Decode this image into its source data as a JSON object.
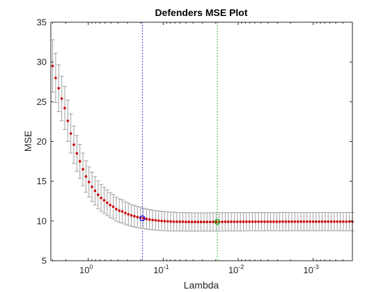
{
  "chart_data": {
    "type": "scatter",
    "title": "Defenders MSE Plot",
    "xlabel": "Lambda",
    "ylabel": "MSE",
    "xscale": "log",
    "xaxis_direction": "reversed",
    "xlim": [
      3.16,
      0.0003
    ],
    "ylim": [
      5,
      35
    ],
    "x_ticks": [
      {
        "value": 1,
        "base": "10",
        "exp": "0"
      },
      {
        "value": 0.1,
        "base": "10",
        "exp": "-1"
      },
      {
        "value": 0.01,
        "base": "10",
        "exp": "-2"
      },
      {
        "value": 0.001,
        "base": "10",
        "exp": "-3"
      }
    ],
    "y_ticks": [
      5,
      10,
      15,
      20,
      25,
      30,
      35
    ],
    "grid": false,
    "lambda_max": 2.99,
    "lambda_min": 0.0003,
    "num_points": 100,
    "series": [
      {
        "style": "red dots with gray error bars",
        "mse": [
          29.5,
          28.0,
          26.7,
          25.4,
          24.2,
          22.6,
          21.0,
          19.6,
          18.5,
          17.5,
          16.5,
          15.6,
          14.9,
          14.3,
          13.8,
          13.3,
          12.9,
          12.6,
          12.3,
          12.0,
          11.8,
          11.5,
          11.3,
          11.2,
          11.0,
          10.85,
          10.7,
          10.6,
          10.5,
          10.42,
          10.33,
          10.25,
          10.18,
          10.12,
          10.08,
          10.04,
          10.0,
          9.97,
          9.95,
          9.93,
          9.92,
          9.91,
          9.9,
          9.9,
          9.89,
          9.89,
          9.88,
          9.88,
          9.88,
          9.88,
          9.88,
          9.88,
          9.88,
          9.89,
          9.89,
          9.89,
          9.89,
          9.9,
          9.9,
          9.9,
          9.9,
          9.9,
          9.9,
          9.9,
          9.91,
          9.91,
          9.91,
          9.91,
          9.91,
          9.91,
          9.91,
          9.91,
          9.91,
          9.91,
          9.91,
          9.91,
          9.92,
          9.92,
          9.92,
          9.92,
          9.92,
          9.92,
          9.92,
          9.92,
          9.92,
          9.92,
          9.92,
          9.92,
          9.92,
          9.92,
          9.92,
          9.92,
          9.92,
          9.92,
          9.92,
          9.92,
          9.92,
          9.92,
          9.92,
          9.92
        ],
        "err": [
          3.3,
          3.1,
          2.95,
          2.8,
          2.7,
          2.6,
          2.45,
          2.35,
          2.25,
          2.15,
          2.05,
          1.97,
          1.9,
          1.85,
          1.8,
          1.75,
          1.7,
          1.66,
          1.62,
          1.58,
          1.55,
          1.52,
          1.49,
          1.46,
          1.43,
          1.4,
          1.37,
          1.35,
          1.33,
          1.31,
          1.29,
          1.27,
          1.25,
          1.24,
          1.23,
          1.22,
          1.21,
          1.2,
          1.19,
          1.18,
          1.18,
          1.17,
          1.17,
          1.16,
          1.16,
          1.16,
          1.15,
          1.15,
          1.15,
          1.15,
          1.15,
          1.15,
          1.15,
          1.15,
          1.15,
          1.15,
          1.15,
          1.15,
          1.15,
          1.15,
          1.15,
          1.15,
          1.15,
          1.15,
          1.15,
          1.15,
          1.15,
          1.15,
          1.15,
          1.15,
          1.15,
          1.15,
          1.15,
          1.15,
          1.15,
          1.15,
          1.15,
          1.15,
          1.15,
          1.15,
          1.15,
          1.15,
          1.15,
          1.15,
          1.15,
          1.15,
          1.15,
          1.15,
          1.15,
          1.15,
          1.15,
          1.15,
          1.15,
          1.15,
          1.15,
          1.15,
          1.15,
          1.15,
          1.15,
          1.15
        ]
      }
    ],
    "reference_lines": [
      {
        "x": 0.19,
        "style": "dotted",
        "color": "#0000ff",
        "marker_color": "#0000ff"
      },
      {
        "x": 0.019,
        "style": "dotted",
        "color": "#00aa00",
        "marker_color": "#00aa00"
      }
    ],
    "colors": {
      "points": "#cc0000",
      "error_bars": "#a0a0a0",
      "axes": "#262626"
    }
  }
}
